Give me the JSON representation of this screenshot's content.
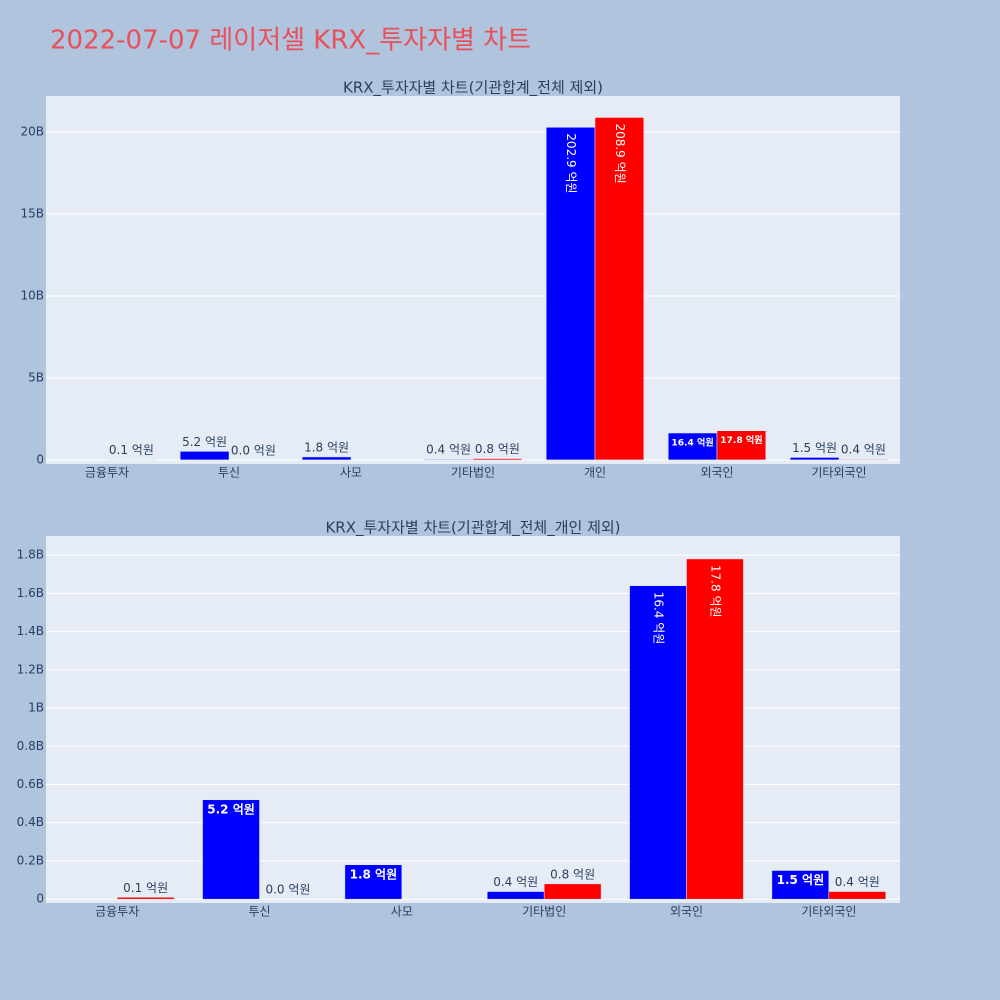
{
  "title": "2022-07-07 레이저셀 KRX_투자자별 차트",
  "chart_data": [
    {
      "type": "bar",
      "title": "KRX_투자자별 차트(기관합계_전체 제외)",
      "categories": [
        "금융투자",
        "투신",
        "사모",
        "기타법인",
        "개인",
        "외국인",
        "기타외국인"
      ],
      "series": [
        {
          "color": "#0000ff",
          "values": [
            null,
            520000000,
            180000000,
            40000000,
            20290000000,
            1640000000,
            150000000
          ],
          "value_labels": [
            null,
            "5.2 억원",
            "1.8 억원",
            "0.4 억원",
            "202.9 억원",
            "16.4 억원",
            "1.5 억원"
          ]
        },
        {
          "color": "#ff0000",
          "values": [
            10000000,
            0,
            null,
            80000000,
            20890000000,
            1780000000,
            40000000
          ],
          "value_labels": [
            "0.1 억원",
            "0.0 억원",
            null,
            "0.8 억원",
            "208.9 억원",
            "17.8 억원",
            "0.4 억원"
          ]
        }
      ],
      "ylim": [
        -250000000,
        22200000000
      ],
      "yticks": [
        0,
        {
          "value": 5000000000,
          "label": "5B"
        },
        {
          "value": 10000000000,
          "label": "10B"
        },
        {
          "value": 15000000000,
          "label": "15B"
        },
        {
          "value": 20000000000,
          "label": "20B"
        }
      ],
      "grid": true
    },
    {
      "type": "bar",
      "title": "KRX_투자자별 차트(기관합계_전체_개인 제외)",
      "categories": [
        "금융투자",
        "투신",
        "사모",
        "기타법인",
        "외국인",
        "기타외국인"
      ],
      "series": [
        {
          "color": "#0000ff",
          "values": [
            null,
            520000000,
            180000000,
            40000000,
            1640000000,
            150000000
          ],
          "value_labels": [
            null,
            "5.2 억원",
            "1.8 억원",
            "0.4 억원",
            "16.4 억원",
            "1.5 억원"
          ]
        },
        {
          "color": "#ff0000",
          "values": [
            10000000,
            0,
            null,
            80000000,
            1780000000,
            40000000
          ],
          "value_labels": [
            "0.1 억원",
            "0.0 억원",
            null,
            "0.8 억원",
            "17.8 억원",
            "0.4 억원"
          ]
        }
      ],
      "ylim": [
        -20000000,
        1900000000
      ],
      "yticks": [
        0,
        {
          "value": 200000000,
          "label": "0.2B"
        },
        {
          "value": 400000000,
          "label": "0.4B"
        },
        {
          "value": 600000000,
          "label": "0.6B"
        },
        {
          "value": 800000000,
          "label": "0.8B"
        },
        {
          "value": 1000000000,
          "label": "1B"
        },
        {
          "value": 1200000000,
          "label": "1.2B"
        },
        {
          "value": 1400000000,
          "label": "1.4B"
        },
        {
          "value": 1600000000,
          "label": "1.6B"
        },
        {
          "value": 1800000000,
          "label": "1.8B"
        }
      ],
      "grid": true
    }
  ]
}
